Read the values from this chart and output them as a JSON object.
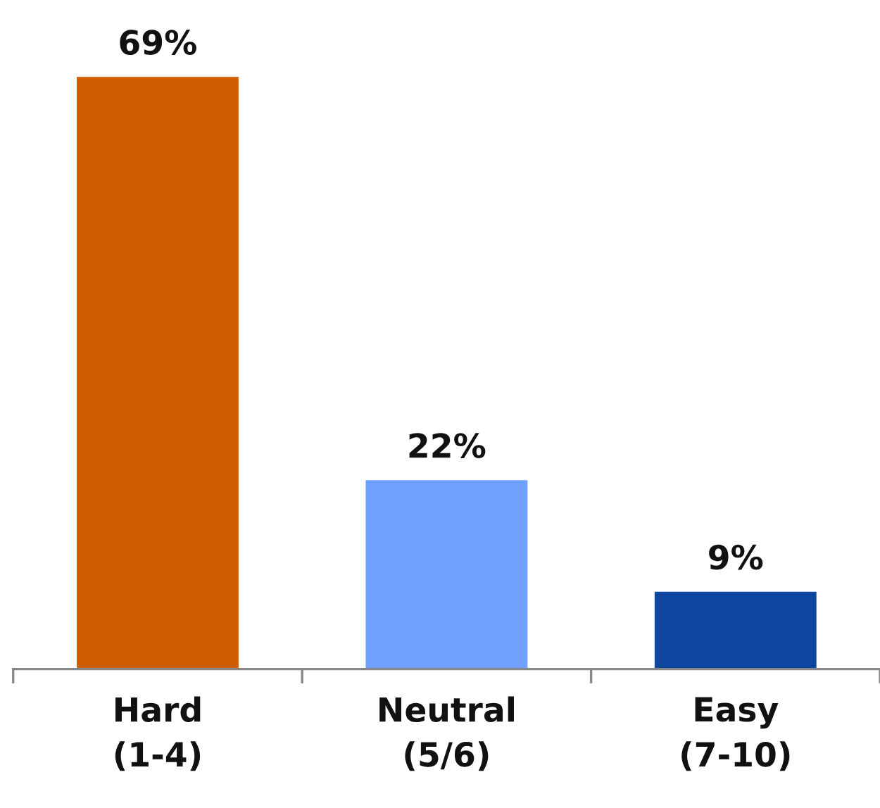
{
  "chart_data": {
    "type": "bar",
    "categories": [
      "Hard\n(1-4)",
      "Neutral\n(5/6)",
      "Easy\n(7-10)"
    ],
    "values": [
      69,
      22,
      9
    ],
    "colors": [
      "#d05c00",
      "#6f9fff",
      "#0e47a0"
    ],
    "value_labels": [
      "69%",
      "22%",
      "9%"
    ],
    "grid": false,
    "legend": false
  }
}
